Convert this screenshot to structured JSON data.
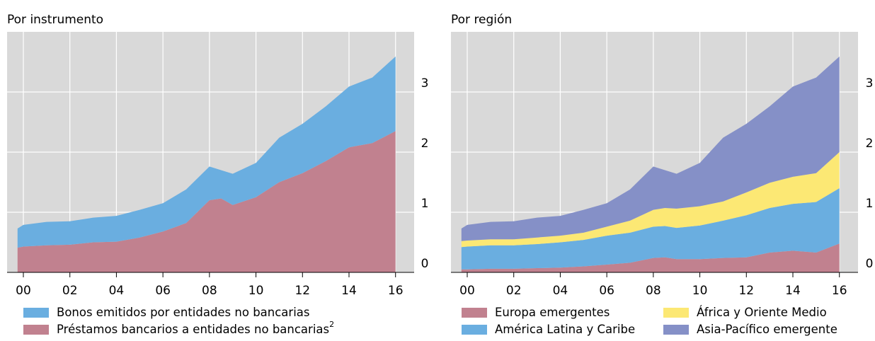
{
  "chart_data": [
    {
      "type": "area",
      "title": "Por instrumento",
      "x": [
        1999.75,
        2000,
        2001,
        2002,
        2003,
        2004,
        2005,
        2006,
        2007,
        2008,
        2008.5,
        2009,
        2010,
        2011,
        2012,
        2013,
        2014,
        2015,
        2016
      ],
      "series": [
        {
          "name": "Préstamos bancarios a entidades no bancarias",
          "footnote": "2",
          "color": "#c1818f",
          "values": [
            0.41,
            0.43,
            0.45,
            0.46,
            0.5,
            0.51,
            0.58,
            0.68,
            0.82,
            1.2,
            1.23,
            1.12,
            1.25,
            1.5,
            1.65,
            1.85,
            2.08,
            2.15,
            2.35
          ]
        },
        {
          "name": "Bonos emitidos por entidades no bancarias",
          "color": "#6aaee0",
          "values": [
            0.32,
            0.36,
            0.39,
            0.39,
            0.41,
            0.43,
            0.46,
            0.47,
            0.56,
            0.56,
            0.47,
            0.52,
            0.57,
            0.74,
            0.82,
            0.91,
            1.01,
            1.09,
            1.24
          ]
        }
      ],
      "xlim": [
        1999.3,
        2016.8
      ],
      "xticks": [
        {
          "value": 2000,
          "label": "00"
        },
        {
          "value": 2002,
          "label": "02"
        },
        {
          "value": 2004,
          "label": "04"
        },
        {
          "value": 2006,
          "label": "06"
        },
        {
          "value": 2008,
          "label": "08"
        },
        {
          "value": 2010,
          "label": "10"
        },
        {
          "value": 2012,
          "label": "12"
        },
        {
          "value": 2014,
          "label": "14"
        },
        {
          "value": 2016,
          "label": "16"
        }
      ],
      "ylim": [
        0,
        4
      ],
      "yticks": [
        0,
        1,
        2,
        3
      ],
      "grid": true
    },
    {
      "type": "area",
      "title": "Por región",
      "x": [
        1999.75,
        2000,
        2001,
        2002,
        2003,
        2004,
        2005,
        2006,
        2007,
        2008,
        2008.5,
        2009,
        2010,
        2011,
        2012,
        2013,
        2014,
        2015,
        2016
      ],
      "series": [
        {
          "name": "Europa emergentes",
          "color": "#c1818f",
          "values": [
            0.05,
            0.05,
            0.06,
            0.06,
            0.07,
            0.08,
            0.1,
            0.13,
            0.16,
            0.24,
            0.25,
            0.22,
            0.22,
            0.24,
            0.25,
            0.33,
            0.36,
            0.33,
            0.48
          ]
        },
        {
          "name": "América Latina y Caribe",
          "color": "#6aaee0",
          "values": [
            0.37,
            0.38,
            0.39,
            0.39,
            0.4,
            0.42,
            0.44,
            0.48,
            0.5,
            0.52,
            0.52,
            0.52,
            0.56,
            0.62,
            0.7,
            0.74,
            0.78,
            0.84,
            0.92
          ]
        },
        {
          "name": "África y Oriente Medio",
          "color": "#fce874",
          "values": [
            0.1,
            0.1,
            0.1,
            0.1,
            0.11,
            0.11,
            0.12,
            0.15,
            0.2,
            0.28,
            0.3,
            0.32,
            0.32,
            0.32,
            0.38,
            0.42,
            0.45,
            0.48,
            0.6
          ]
        },
        {
          "name": "Asia-Pacífico emergente",
          "color": "#8590c7",
          "values": [
            0.21,
            0.26,
            0.29,
            0.3,
            0.33,
            0.33,
            0.38,
            0.39,
            0.52,
            0.72,
            0.63,
            0.58,
            0.72,
            1.06,
            1.14,
            1.27,
            1.5,
            1.59,
            1.59
          ]
        }
      ],
      "xlim": [
        1999.3,
        2016.8
      ],
      "xticks": [
        {
          "value": 2000,
          "label": "00"
        },
        {
          "value": 2002,
          "label": "02"
        },
        {
          "value": 2004,
          "label": "04"
        },
        {
          "value": 2006,
          "label": "06"
        },
        {
          "value": 2008,
          "label": "08"
        },
        {
          "value": 2010,
          "label": "10"
        },
        {
          "value": 2012,
          "label": "12"
        },
        {
          "value": 2014,
          "label": "14"
        },
        {
          "value": 2016,
          "label": "16"
        }
      ],
      "ylim": [
        0,
        4
      ],
      "yticks": [
        0,
        1,
        2,
        3
      ],
      "grid": true
    }
  ]
}
